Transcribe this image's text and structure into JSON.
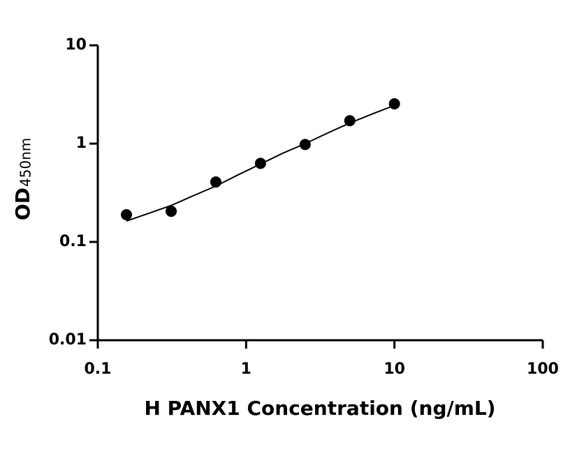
{
  "chart_data": {
    "type": "scatter",
    "x_label": "H PANX1 Concentration (ng/mL)",
    "y_label": "OD",
    "y_label_subscript": "450nm",
    "xscale": "log",
    "yscale": "log",
    "xlim": [
      0.1,
      100
    ],
    "ylim": [
      0.01,
      10
    ],
    "xticks": [
      0.1,
      1,
      10,
      100
    ],
    "yticks": [
      0.01,
      0.1,
      1,
      10
    ],
    "series": [
      {
        "mode": "markers",
        "color": "#000000",
        "x": [
          0.156,
          0.3125,
          0.625,
          1.25,
          2.5,
          5,
          10
        ],
        "values": [
          0.189,
          0.205,
          0.407,
          0.63,
          0.98,
          1.71,
          2.54
        ]
      },
      {
        "mode": "line",
        "color": "#000000",
        "x": [
          0.156,
          0.22,
          0.3125,
          0.44,
          0.625,
          0.88,
          1.25,
          1.77,
          2.5,
          3.54,
          5,
          7.07,
          10
        ],
        "values": [
          0.163,
          0.195,
          0.235,
          0.295,
          0.37,
          0.48,
          0.62,
          0.8,
          1.0,
          1.28,
          1.62,
          2.0,
          2.45
        ]
      }
    ]
  }
}
